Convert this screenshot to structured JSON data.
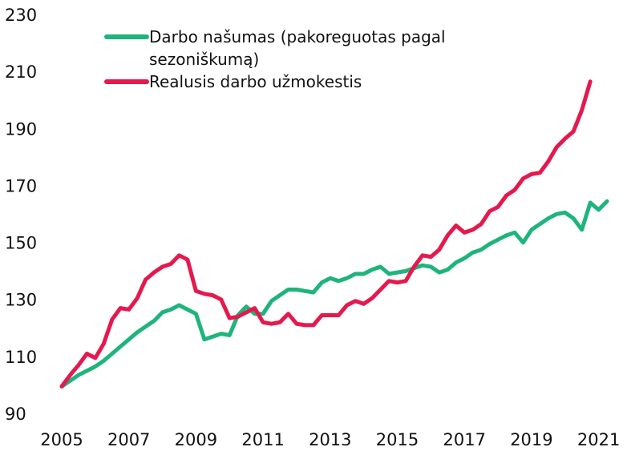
{
  "chart_data": {
    "type": "line",
    "x": [
      2005,
      2005.25,
      2005.5,
      2005.75,
      2006,
      2006.25,
      2006.5,
      2006.75,
      2007,
      2007.25,
      2007.5,
      2007.75,
      2008,
      2008.25,
      2008.5,
      2008.75,
      2009,
      2009.25,
      2009.5,
      2009.75,
      2010,
      2010.25,
      2010.5,
      2010.75,
      2011,
      2011.25,
      2011.5,
      2011.75,
      2012,
      2012.25,
      2012.5,
      2012.75,
      2013,
      2013.25,
      2013.5,
      2013.75,
      2014,
      2014.25,
      2014.5,
      2014.75,
      2015,
      2015.25,
      2015.5,
      2015.75,
      2016,
      2016.25,
      2016.5,
      2016.75,
      2017,
      2017.25,
      2017.5,
      2017.75,
      2018,
      2018.25,
      2018.5,
      2018.75,
      2019,
      2019.25,
      2019.5,
      2019.75,
      2020,
      2020.25,
      2020.5,
      2020.75,
      2021,
      2021.25
    ],
    "series": [
      {
        "name": "Darbo našumas (pakoreguotas pagal sezoniškumą)",
        "color": "#1fb47c",
        "values": [
          100,
          102,
          104,
          105.5,
          107,
          109,
          111.5,
          114,
          116.5,
          119,
          121,
          123,
          126,
          127,
          128.5,
          127,
          125.5,
          116.5,
          117.5,
          118.5,
          118,
          125,
          128,
          125.5,
          125.5,
          130,
          132,
          134,
          134,
          133.5,
          133,
          136.5,
          138,
          137,
          138,
          139.5,
          139.5,
          141,
          142,
          139.5,
          140,
          140.5,
          141.5,
          142.5,
          142,
          140,
          141,
          143.5,
          145,
          147,
          148,
          150,
          151.5,
          153,
          154,
          150.5,
          155,
          157,
          159,
          160.5,
          161,
          159,
          155,
          164.5,
          162,
          165
        ]
      },
      {
        "name": "Realusis darbo užmokestis",
        "color": "#e4194d",
        "values": [
          100,
          104,
          107.5,
          111.5,
          110,
          115,
          123.5,
          127.5,
          127,
          131,
          137.5,
          140,
          142,
          143,
          146,
          144.5,
          133.5,
          132.5,
          132,
          130.5,
          124,
          124.5,
          126,
          127.5,
          122.5,
          122,
          122.5,
          125.5,
          122,
          121.5,
          121.5,
          125,
          125,
          125,
          128.5,
          130,
          129,
          131,
          134,
          137,
          136.5,
          137,
          142,
          146,
          145.5,
          148,
          153,
          156.5,
          154,
          155,
          157,
          161.5,
          163,
          167,
          169,
          173,
          174.5,
          175,
          179,
          184,
          187,
          189.5,
          197,
          207,
          null,
          null
        ]
      }
    ],
    "xlim": [
      2005,
      2021.2
    ],
    "xticks": [
      2005,
      2007,
      2009,
      2011,
      2013,
      2015,
      2017,
      2019,
      2021
    ],
    "ylim": [
      90,
      230
    ],
    "yticks": [
      90,
      110,
      130,
      150,
      170,
      190,
      210,
      230
    ]
  }
}
